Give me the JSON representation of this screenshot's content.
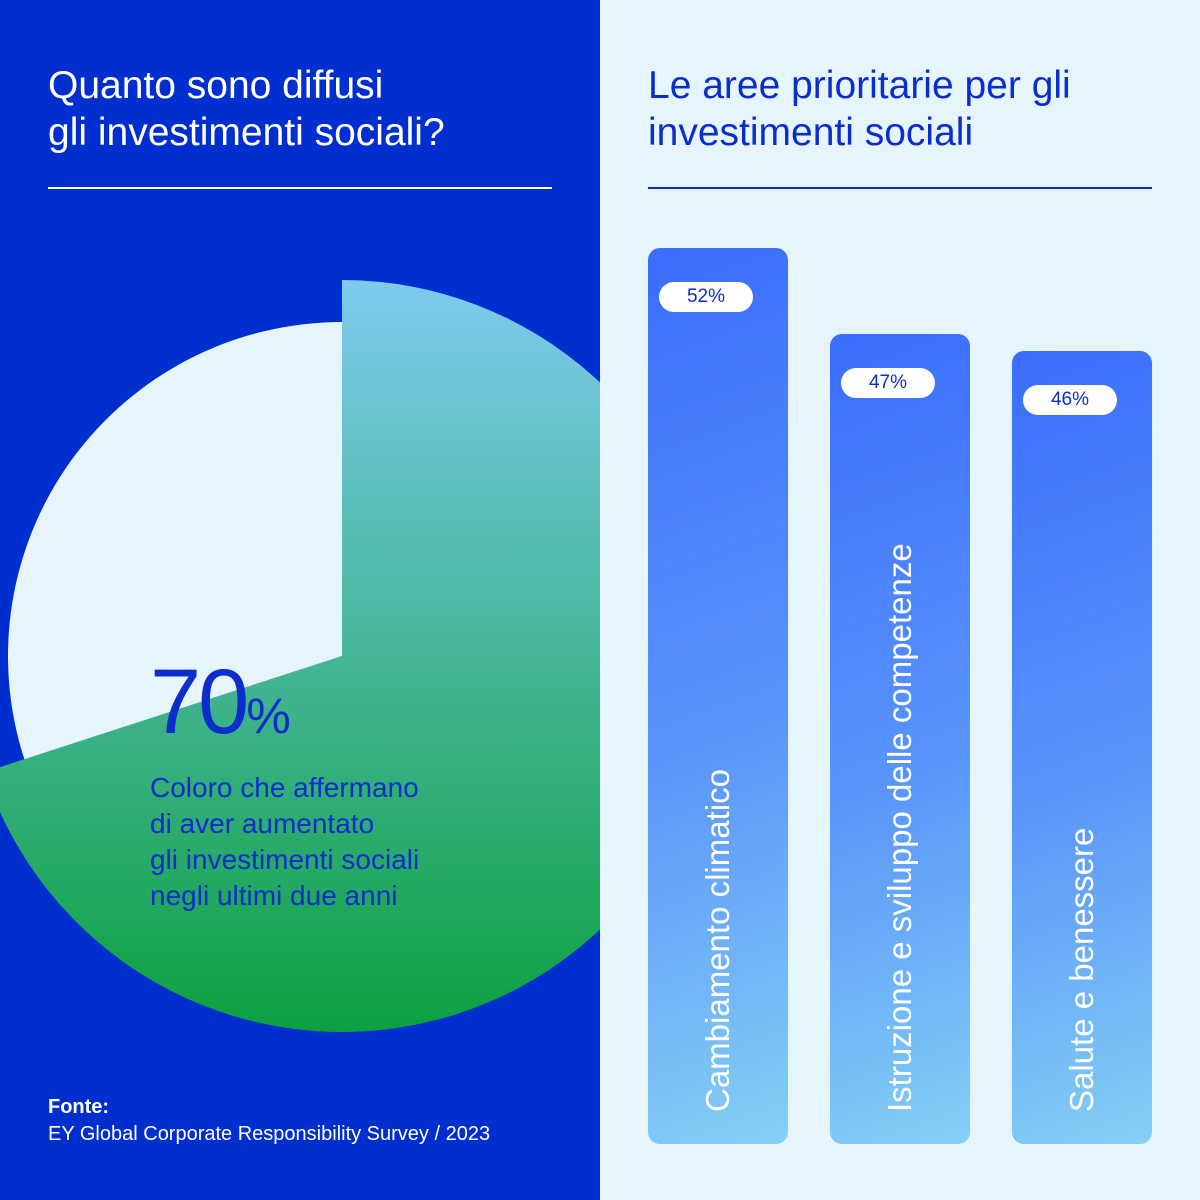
{
  "left_panel": {
    "title_line1": "Quanto sono diffusi",
    "title_line2": "gli investimenti sociali?",
    "big_number": "70",
    "percent_sign": "%",
    "description_lines": [
      "Coloro che affermano",
      "di aver aumentato",
      "gli investimenti sociali",
      "negli ultimi due anni"
    ],
    "source_label": "Fonte:",
    "source_text": "EY Global Corporate Responsibility Survey / 2023"
  },
  "right_panel": {
    "title_line1": "Le aree prioritarie per gli",
    "title_line2": "investimenti sociali"
  },
  "colors": {
    "dark_blue": "#012ecf",
    "light_bg": "#e6f4fb",
    "pie_light": "#e6f4fb",
    "pie_grad_start": "#7ecbee",
    "pie_grad_end": "#0da040",
    "bar_grad_start": "#3a6dfc",
    "bar_grad_end": "#84d0f5"
  },
  "chart_data": [
    {
      "type": "pie",
      "values": [
        70,
        30
      ],
      "labels": [
        "70%",
        ""
      ],
      "title": "Quanto sono diffusi gli investimenti sociali?"
    },
    {
      "type": "bar",
      "title": "Le aree prioritarie per gli investimenti sociali",
      "categories": [
        "Cambiamento climatico",
        "Istruzione e sviluppo delle competenze",
        "Salute e benessere"
      ],
      "values": [
        52,
        47,
        46
      ],
      "value_labels": [
        "52%",
        "47%",
        "46%"
      ]
    }
  ]
}
